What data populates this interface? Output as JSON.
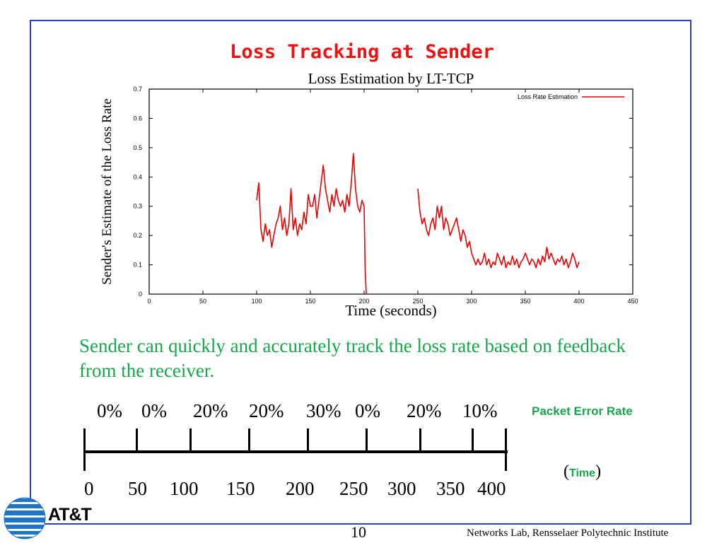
{
  "slide": {
    "title": "Loss Tracking at Sender",
    "body": "Sender can quickly and accurately track the loss rate based on feedback from the receiver.",
    "page_number": "10",
    "footer": "Networks Lab, Rensselaer Polytechnic Institute",
    "logo_text": "AT&T"
  },
  "chart_data": {
    "type": "line",
    "title": "Loss Estimation by LT-TCP",
    "xlabel": "Time (seconds)",
    "ylabel": "Sender's Estimate of the Loss Rate",
    "xlim": [
      0,
      450
    ],
    "ylim": [
      0,
      0.7
    ],
    "xticks": [
      "0",
      "50",
      "100",
      "150",
      "200",
      "250",
      "300",
      "350",
      "400",
      "450"
    ],
    "yticks": [
      "0",
      "0.1",
      "0.2",
      "0.3",
      "0.4",
      "0.5",
      "0.6",
      "0.7"
    ],
    "legend": "top-right",
    "grid": false,
    "color": "#ee0000",
    "series": [
      {
        "name": "Loss Rate Estimation",
        "x": [
          100,
          102,
          104,
          106,
          108,
          110,
          112,
          114,
          116,
          118,
          120,
          122,
          124,
          126,
          128,
          130,
          132,
          134,
          136,
          138,
          140,
          142,
          144,
          146,
          148,
          150,
          152,
          154,
          156,
          158,
          160,
          162,
          164,
          166,
          168,
          170,
          172,
          174,
          176,
          178,
          180,
          182,
          184,
          186,
          188,
          190,
          192,
          194,
          196,
          198,
          200,
          201,
          202,
          250,
          252,
          254,
          256,
          258,
          260,
          262,
          264,
          266,
          268,
          270,
          272,
          274,
          276,
          278,
          280,
          282,
          284,
          286,
          288,
          290,
          292,
          294,
          296,
          298,
          300,
          302,
          304,
          306,
          308,
          310,
          312,
          314,
          316,
          318,
          320,
          322,
          324,
          326,
          328,
          330,
          332,
          334,
          336,
          338,
          340,
          342,
          344,
          346,
          348,
          350,
          352,
          354,
          356,
          358,
          360,
          362,
          364,
          366,
          368,
          370,
          372,
          374,
          376,
          378,
          380,
          382,
          384,
          386,
          388,
          390,
          392,
          394,
          396,
          398,
          400
        ],
        "y": [
          0.32,
          0.38,
          0.22,
          0.18,
          0.24,
          0.2,
          0.22,
          0.16,
          0.2,
          0.24,
          0.26,
          0.3,
          0.22,
          0.26,
          0.2,
          0.24,
          0.36,
          0.22,
          0.26,
          0.2,
          0.24,
          0.22,
          0.28,
          0.24,
          0.34,
          0.3,
          0.3,
          0.34,
          0.26,
          0.32,
          0.38,
          0.44,
          0.36,
          0.32,
          0.28,
          0.34,
          0.3,
          0.36,
          0.32,
          0.3,
          0.32,
          0.28,
          0.34,
          0.3,
          0.38,
          0.48,
          0.36,
          0.3,
          0.28,
          0.32,
          0.3,
          0.08,
          0.0,
          0.36,
          0.28,
          0.24,
          0.26,
          0.22,
          0.2,
          0.24,
          0.26,
          0.22,
          0.3,
          0.26,
          0.3,
          0.22,
          0.26,
          0.24,
          0.2,
          0.22,
          0.24,
          0.26,
          0.22,
          0.18,
          0.22,
          0.2,
          0.16,
          0.18,
          0.14,
          0.12,
          0.1,
          0.12,
          0.1,
          0.11,
          0.14,
          0.1,
          0.12,
          0.09,
          0.11,
          0.1,
          0.14,
          0.12,
          0.1,
          0.13,
          0.09,
          0.11,
          0.1,
          0.13,
          0.1,
          0.12,
          0.09,
          0.11,
          0.12,
          0.14,
          0.12,
          0.1,
          0.12,
          0.11,
          0.09,
          0.12,
          0.1,
          0.13,
          0.11,
          0.16,
          0.12,
          0.14,
          0.12,
          0.1,
          0.12,
          0.11,
          0.13,
          0.1,
          0.12,
          0.09,
          0.11,
          0.14,
          0.12,
          0.09,
          0.11
        ]
      }
    ]
  },
  "timeline": {
    "error_rates": [
      "0%",
      "0%",
      "20%",
      "20%",
      "30%",
      "0%",
      "20%",
      "10%"
    ],
    "error_rate_label": "Packet Error Rate",
    "time_marks": [
      "0",
      "50",
      "100",
      "150",
      "200",
      "250",
      "300",
      "350",
      "400"
    ],
    "time_label": "Time",
    "time_open": "(",
    "time_close": ")"
  }
}
